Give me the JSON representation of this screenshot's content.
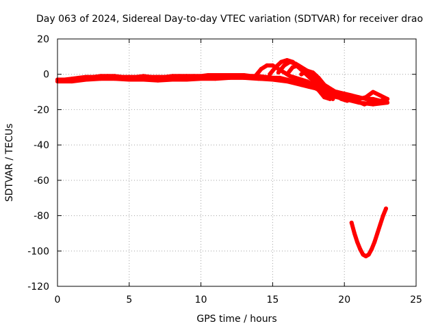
{
  "chart_data": {
    "type": "line",
    "title": "Day 063 of 2024, Sidereal Day-to-day VTEC variation (SDTVAR) for receiver drao",
    "xlabel": "GPS time / hours",
    "ylabel": "SDTVAR / TECUs",
    "xlim": [
      0,
      25
    ],
    "ylim": [
      -120,
      20
    ],
    "xticks": [
      0,
      5,
      10,
      15,
      20,
      25
    ],
    "yticks": [
      20,
      0,
      -20,
      -40,
      -60,
      -80,
      -100,
      -120
    ],
    "grid": true,
    "series_color": "#ff0000",
    "series": [
      {
        "name": "main-trace",
        "x": [
          0.0,
          0.5,
          1.0,
          1.5,
          2.0,
          2.5,
          3.0,
          3.5,
          4.0,
          4.5,
          5.0,
          5.5,
          6.0,
          6.5,
          7.0,
          7.5,
          8.0,
          8.5,
          9.0,
          9.5,
          10.0,
          10.5,
          11.0,
          11.5,
          12.0,
          12.5,
          13.0,
          13.5,
          14.0,
          14.5,
          15.0,
          15.5,
          16.0,
          16.5,
          17.0,
          17.5,
          18.0,
          18.5,
          19.0,
          19.5,
          20.0,
          20.5,
          21.0,
          21.5,
          22.0,
          22.5,
          23.0
        ],
        "y": [
          -3,
          -3,
          -2.5,
          -2,
          -1.5,
          -1.5,
          -1,
          -1,
          -1,
          -1.5,
          -1.5,
          -1.5,
          -1,
          -1.5,
          -1.5,
          -1.5,
          -1,
          -1,
          -1,
          -1,
          -1,
          -0.5,
          -0.5,
          -0.5,
          -0.5,
          -0.5,
          -0.5,
          -1,
          -1,
          -1.5,
          -2,
          -2,
          -3,
          -4,
          -5,
          -6,
          -7,
          -8,
          -9,
          -10,
          -11,
          -12,
          -13,
          -14,
          -14,
          -15,
          -14
        ]
      },
      {
        "name": "trace-low",
        "x": [
          0.0,
          1.0,
          2.0,
          3.0,
          4.0,
          5.0,
          6.0,
          7.0,
          8.0,
          9.0,
          10.0,
          11.0,
          12.0,
          13.0,
          14.0,
          15.0,
          16.0,
          17.0,
          17.5,
          18.0,
          18.5,
          19.0,
          19.5,
          20.0,
          21.0,
          22.0,
          23.0
        ],
        "y": [
          -4,
          -4,
          -3,
          -2.5,
          -2.5,
          -3,
          -3,
          -3.5,
          -3,
          -3,
          -2.5,
          -2.5,
          -2,
          -2,
          -2.5,
          -3,
          -4,
          -6,
          -7,
          -8,
          -10,
          -12,
          -13,
          -14,
          -16,
          -17,
          -16
        ]
      },
      {
        "name": "peak-1",
        "x": [
          13.8,
          14.2,
          14.6,
          15.0,
          15.4,
          15.8,
          16.2,
          16.6,
          17.0,
          17.4,
          17.8,
          18.2,
          18.6,
          19.0
        ],
        "y": [
          -1,
          3,
          5,
          5,
          3,
          1,
          -1,
          -2,
          -3,
          -4,
          -6,
          -9,
          -13,
          -14
        ]
      },
      {
        "name": "peak-2",
        "x": [
          14.8,
          15.2,
          15.6,
          16.0,
          16.4,
          16.8,
          17.2,
          17.6,
          18.0,
          18.4,
          18.8,
          19.2
        ],
        "y": [
          0,
          4,
          7,
          8,
          7,
          4,
          1,
          -2,
          -5,
          -8,
          -11,
          -14
        ]
      },
      {
        "name": "peak-3",
        "x": [
          15.4,
          15.8,
          16.2,
          16.6,
          17.0,
          17.4,
          17.8,
          18.2,
          18.6,
          19.0,
          19.4,
          19.8,
          20.2
        ],
        "y": [
          1,
          5,
          7,
          6,
          4,
          2,
          -1,
          -4,
          -7,
          -10,
          -12,
          -14,
          -15
        ]
      },
      {
        "name": "peak-4",
        "x": [
          16.0,
          16.4,
          16.8,
          17.2,
          17.6,
          18.0,
          18.4,
          18.8,
          19.2,
          19.6,
          20.0
        ],
        "y": [
          0,
          4,
          5,
          3,
          0,
          -3,
          -5,
          -7,
          -9,
          -11,
          -13
        ]
      },
      {
        "name": "peak-5",
        "x": [
          17.0,
          17.4,
          17.8,
          18.2,
          18.6,
          19.0
        ],
        "y": [
          0,
          2,
          1,
          -2,
          -6,
          -10
        ]
      },
      {
        "name": "tail-1",
        "x": [
          20.0,
          20.5,
          21.0,
          21.5,
          22.0,
          22.5,
          23.0
        ],
        "y": [
          -11,
          -12,
          -14,
          -13,
          -10,
          -12,
          -14
        ]
      },
      {
        "name": "tail-2",
        "x": [
          20.2,
          20.8,
          21.4,
          22.0,
          22.6
        ],
        "y": [
          -13,
          -15,
          -17,
          -15,
          -16
        ]
      },
      {
        "name": "v-dip",
        "x": [
          20.5,
          20.7,
          20.9,
          21.1,
          21.3,
          21.5,
          21.7,
          21.9,
          22.1,
          22.3,
          22.5,
          22.7,
          22.9
        ],
        "y": [
          -84,
          -90,
          -95,
          -99,
          -102,
          -103,
          -102,
          -99,
          -95,
          -90,
          -85,
          -80,
          -76
        ]
      }
    ]
  }
}
